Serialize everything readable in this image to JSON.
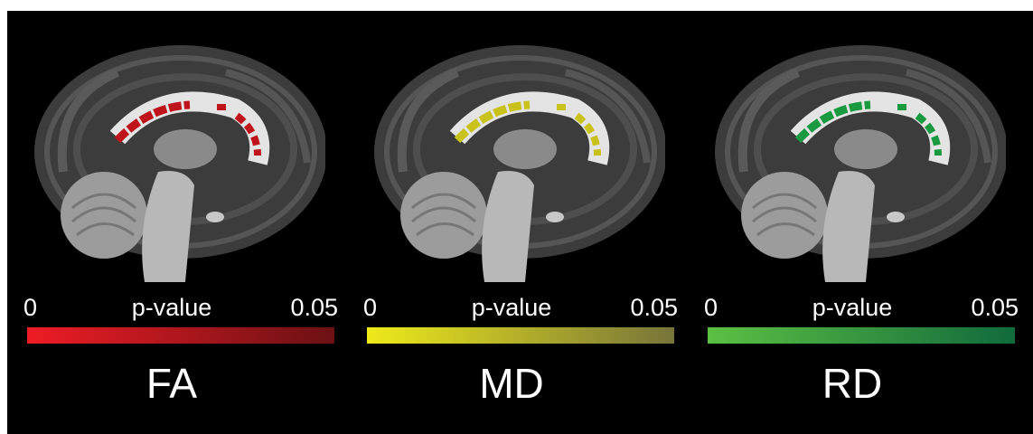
{
  "panels": [
    {
      "title": "FA",
      "scale_min": "0",
      "scale_label": "p-value",
      "scale_max": "0.05",
      "color_start": "#ee1c25",
      "color_end": "#6b1114",
      "cluster_color": "#c0141c"
    },
    {
      "title": "MD",
      "scale_min": "0",
      "scale_label": "p-value",
      "scale_max": "0.05",
      "color_start": "#eeea1a",
      "color_end": "#77743a",
      "cluster_color": "#c8c21a"
    },
    {
      "title": "RD",
      "scale_min": "0",
      "scale_label": "p-value",
      "scale_max": "0.05",
      "color_start": "#5cc043",
      "color_end": "#106b3c",
      "cluster_color": "#1a9a40"
    }
  ]
}
